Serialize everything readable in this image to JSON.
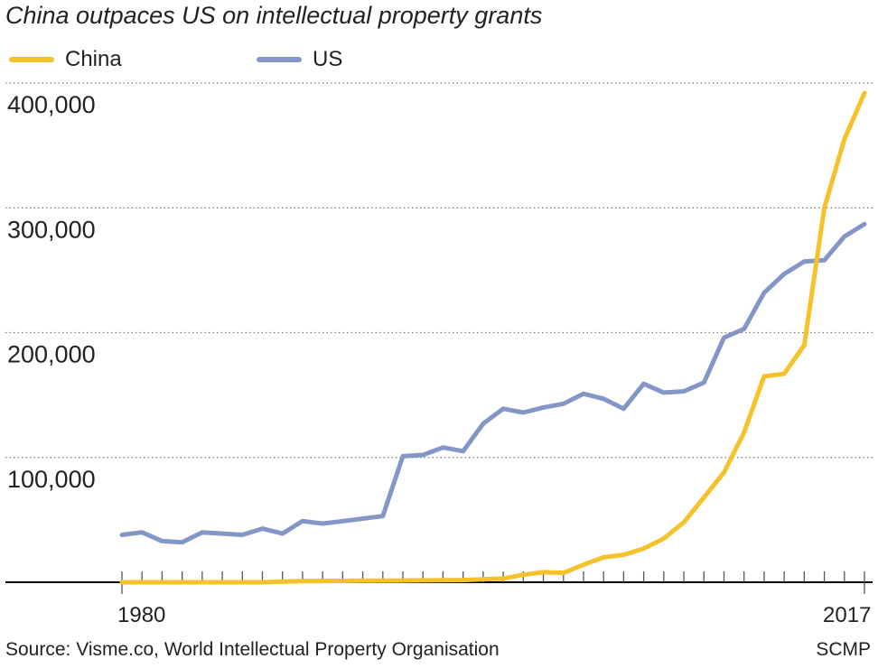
{
  "title": "China outpaces US on intellectual property grants",
  "source": "Source: Visme.co, World Intellectual Property Organisation",
  "credit": "SCMP",
  "chart_data": {
    "type": "line",
    "title": "China outpaces US on intellectual property grants",
    "xlabel": "",
    "ylabel": "",
    "x_tick_labels": [
      "1980",
      "2017"
    ],
    "y_tick_labels": [
      "100,000",
      "200,000",
      "300,000",
      "400,000"
    ],
    "xlim": [
      1980,
      2017
    ],
    "ylim": [
      0,
      400000
    ],
    "grid": "horizontal dotted",
    "legend_position": "top-left",
    "x": [
      1980,
      1981,
      1982,
      1983,
      1984,
      1985,
      1986,
      1987,
      1988,
      1989,
      1990,
      1991,
      1992,
      1993,
      1994,
      1995,
      1996,
      1997,
      1998,
      1999,
      2000,
      2001,
      2002,
      2003,
      2004,
      2005,
      2006,
      2007,
      2008,
      2009,
      2010,
      2011,
      2012,
      2013,
      2014,
      2015,
      2016,
      2017
    ],
    "series": [
      {
        "name": "China",
        "color": "#f5c22b",
        "values": [
          0,
          0,
          0,
          0,
          0,
          0,
          0,
          0,
          500,
          900,
          1000,
          1100,
          1200,
          1300,
          1400,
          1500,
          1600,
          1700,
          2300,
          3000,
          6000,
          8000,
          7500,
          14000,
          20000,
          22000,
          27000,
          35000,
          48000,
          68000,
          88000,
          120000,
          165000,
          167000,
          190000,
          300000,
          355000,
          392000
        ]
      },
      {
        "name": "US",
        "color": "#8496c8",
        "values": [
          38000,
          40000,
          33000,
          32000,
          40000,
          39000,
          38000,
          43000,
          39000,
          49000,
          47000,
          49000,
          51000,
          53000,
          101000,
          102000,
          108000,
          105000,
          127000,
          139000,
          136000,
          140000,
          143000,
          151000,
          147000,
          139000,
          159000,
          152000,
          153000,
          160000,
          196000,
          203000,
          232000,
          247000,
          257000,
          258000,
          277000,
          287000
        ]
      }
    ]
  }
}
